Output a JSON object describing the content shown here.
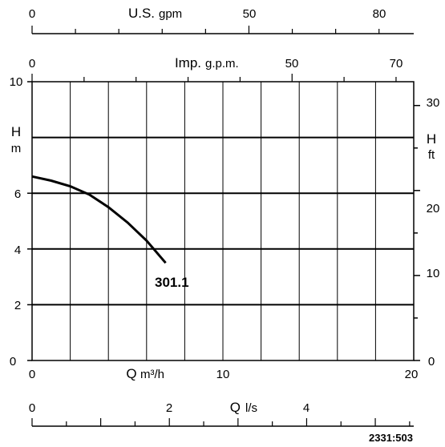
{
  "chart_data": {
    "type": "line",
    "top_axis_1": {
      "prefix": "U.S.",
      "unit": "gpm",
      "ticks": [
        "0",
        "50",
        "80"
      ],
      "tick_values": [
        0,
        50,
        80
      ],
      "range": [
        0,
        88
      ]
    },
    "top_axis_2": {
      "prefix": "Imp.",
      "unit": "g.p.m.",
      "ticks": [
        "0",
        "50",
        "70"
      ],
      "tick_values": [
        0,
        50,
        70
      ],
      "range": [
        0,
        73.4
      ]
    },
    "left_axis": {
      "symbol": "H",
      "unit": "m",
      "ticks": [
        "0",
        "2",
        "4",
        "6",
        "10"
      ],
      "tick_values": [
        0,
        2,
        4,
        6,
        10
      ],
      "range": [
        0,
        10
      ]
    },
    "right_axis": {
      "symbol": "H",
      "unit": "ft",
      "ticks": [
        "0",
        "10",
        "20",
        "30"
      ],
      "tick_values": [
        0,
        10,
        20,
        30
      ],
      "range": [
        0,
        32.8
      ]
    },
    "bottom_axis_1": {
      "symbol": "Q",
      "unit": "m³/h",
      "ticks": [
        "0",
        "10",
        "20"
      ],
      "tick_values": [
        0,
        10,
        20
      ],
      "range": [
        0,
        20
      ]
    },
    "bottom_axis_2": {
      "symbol": "Q",
      "unit": "l/s",
      "ticks": [
        "0",
        "2",
        "4"
      ],
      "tick_values": [
        0,
        2,
        4
      ],
      "range": [
        0,
        5.56
      ]
    },
    "series": [
      {
        "name": "301.1",
        "x": [
          0,
          1,
          2,
          3,
          4,
          5,
          6,
          7
        ],
        "y": [
          6.6,
          6.45,
          6.25,
          5.95,
          5.5,
          4.95,
          4.3,
          3.5
        ]
      }
    ],
    "grid": true,
    "code": "2331:503"
  }
}
